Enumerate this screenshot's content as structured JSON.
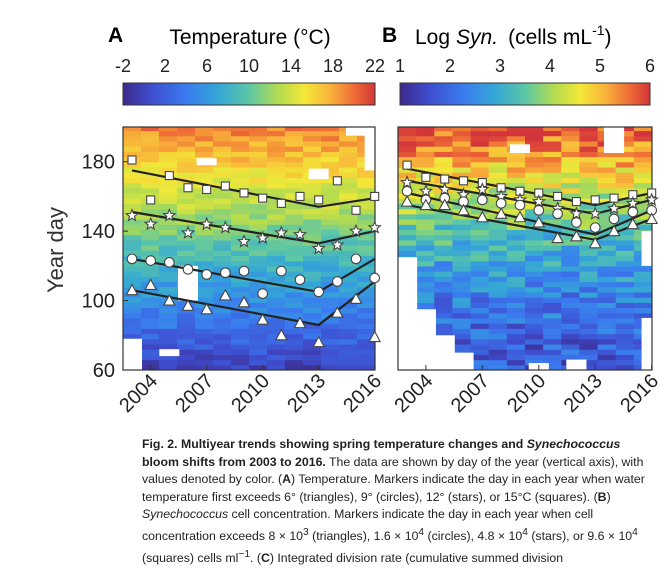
{
  "chart_data": [
    {
      "type": "heatmap",
      "panel": "A",
      "colorbar_title": "Temperature (°C)",
      "colorbar_ticks": [
        "-2",
        "2",
        "6",
        "10",
        "14",
        "18",
        "22"
      ],
      "colorbar_range": [
        -2,
        22
      ],
      "ylabel": "Year day",
      "ylim": [
        60,
        200
      ],
      "yticks": [
        "60",
        "100",
        "140",
        "180"
      ],
      "xlim": [
        2003,
        2016.5
      ],
      "xticks": [
        "2004",
        "2007",
        "2010",
        "2013",
        "2016"
      ],
      "series": [
        {
          "marker": "square",
          "points": [
            [
              2003,
              181
            ],
            [
              2004,
              158
            ],
            [
              2005,
              172
            ],
            [
              2006,
              165
            ],
            [
              2007,
              164
            ],
            [
              2008,
              166
            ],
            [
              2009,
              162
            ],
            [
              2010,
              159
            ],
            [
              2011,
              156
            ],
            [
              2012,
              160
            ],
            [
              2013,
              158
            ],
            [
              2014,
              169
            ],
            [
              2015,
              152
            ],
            [
              2016,
              160
            ]
          ],
          "trend": [
            [
              2003,
              175
            ],
            [
              2013,
              154
            ],
            [
              2016,
              159
            ]
          ]
        },
        {
          "marker": "star",
          "points": [
            [
              2003,
              149
            ],
            [
              2004,
              144
            ],
            [
              2005,
              149
            ],
            [
              2006,
              139
            ],
            [
              2007,
              144
            ],
            [
              2008,
              142
            ],
            [
              2009,
              134
            ],
            [
              2010,
              136
            ],
            [
              2011,
              139
            ],
            [
              2012,
              138
            ],
            [
              2013,
              130
            ],
            [
              2014,
              132
            ],
            [
              2015,
              140
            ],
            [
              2016,
              142
            ]
          ],
          "trend": [
            [
              2003,
              151
            ],
            [
              2013,
              133
            ],
            [
              2016,
              140
            ]
          ]
        },
        {
          "marker": "circle",
          "points": [
            [
              2003,
              124
            ],
            [
              2004,
              123
            ],
            [
              2005,
              122
            ],
            [
              2006,
              118
            ],
            [
              2007,
              115
            ],
            [
              2008,
              116
            ],
            [
              2009,
              117
            ],
            [
              2010,
              104
            ],
            [
              2011,
              117
            ],
            [
              2012,
              112
            ],
            [
              2013,
              105
            ],
            [
              2014,
              111
            ],
            [
              2015,
              124
            ],
            [
              2016,
              113
            ]
          ],
          "trend": [
            [
              2003,
              124
            ],
            [
              2013,
              105
            ],
            [
              2016,
              124
            ]
          ]
        },
        {
          "marker": "triangle",
          "points": [
            [
              2003,
              106
            ],
            [
              2004,
              109
            ],
            [
              2005,
              100
            ],
            [
              2006,
              97
            ],
            [
              2007,
              95
            ],
            [
              2008,
              103
            ],
            [
              2009,
              99
            ],
            [
              2010,
              89
            ],
            [
              2011,
              80
            ],
            [
              2012,
              87
            ],
            [
              2013,
              76
            ],
            [
              2014,
              93
            ],
            [
              2015,
              101
            ],
            [
              2016,
              79
            ]
          ],
          "trend": [
            [
              2003,
              106
            ],
            [
              2013,
              86
            ],
            [
              2016,
              111
            ]
          ]
        }
      ]
    },
    {
      "type": "heatmap",
      "panel": "B",
      "colorbar_title_main": "Log",
      "colorbar_title_italic": "Syn.",
      "colorbar_title_unit": "(cells mL",
      "colorbar_title_exp": "-1",
      "colorbar_title_close": ")",
      "colorbar_ticks": [
        "1",
        "2",
        "3",
        "4",
        "5",
        "6"
      ],
      "colorbar_range": [
        1,
        6
      ],
      "ylim": [
        60,
        200
      ],
      "xlim": [
        2003,
        2016.5
      ],
      "xticks": [
        "2004",
        "2007",
        "2010",
        "2013",
        "2016"
      ],
      "series": [
        {
          "marker": "square",
          "points": [
            [
              2003,
              178
            ],
            [
              2004,
              171
            ],
            [
              2005,
              170
            ],
            [
              2006,
              169
            ],
            [
              2007,
              168
            ],
            [
              2008,
              165
            ],
            [
              2009,
              163
            ],
            [
              2010,
              162
            ],
            [
              2011,
              160
            ],
            [
              2012,
              157
            ],
            [
              2013,
              158
            ],
            [
              2014,
              159
            ],
            [
              2015,
              161
            ],
            [
              2016,
              162
            ]
          ],
          "trend": [
            [
              2003,
              176
            ],
            [
              2013,
              155
            ],
            [
              2016,
              162
            ]
          ]
        },
        {
          "marker": "star",
          "points": [
            [
              2003,
              168
            ],
            [
              2004,
              163
            ],
            [
              2005,
              164
            ],
            [
              2006,
              161
            ],
            [
              2007,
              164
            ],
            [
              2008,
              160
            ],
            [
              2009,
              158
            ],
            [
              2010,
              157
            ],
            [
              2011,
              153
            ],
            [
              2012,
              150
            ],
            [
              2013,
              150
            ],
            [
              2014,
              153
            ],
            [
              2015,
              156
            ],
            [
              2016,
              158
            ]
          ],
          "trend": [
            [
              2003,
              169
            ],
            [
              2013,
              150
            ],
            [
              2016,
              158
            ]
          ]
        },
        {
          "marker": "circle",
          "points": [
            [
              2003,
              163
            ],
            [
              2004,
              158
            ],
            [
              2005,
              159
            ],
            [
              2006,
              157
            ],
            [
              2007,
              158
            ],
            [
              2008,
              156
            ],
            [
              2009,
              155
            ],
            [
              2010,
              152
            ],
            [
              2011,
              150
            ],
            [
              2012,
              145
            ],
            [
              2013,
              142
            ],
            [
              2014,
              147
            ],
            [
              2015,
              151
            ],
            [
              2016,
              152
            ]
          ],
          "trend": [
            [
              2003,
              162
            ],
            [
              2013,
              138
            ],
            [
              2016,
              152
            ]
          ]
        },
        {
          "marker": "triangle",
          "points": [
            [
              2003,
              157
            ],
            [
              2004,
              155
            ],
            [
              2005,
              155
            ],
            [
              2006,
              152
            ],
            [
              2007,
              148
            ],
            [
              2008,
              150
            ],
            [
              2009,
              148
            ],
            [
              2010,
              145
            ],
            [
              2011,
              136
            ],
            [
              2012,
              137
            ],
            [
              2013,
              133
            ],
            [
              2014,
              140
            ],
            [
              2015,
              144
            ],
            [
              2016,
              147
            ]
          ],
          "trend": [
            [
              2003,
              155
            ],
            [
              2013,
              135
            ],
            [
              2016,
              147
            ]
          ]
        }
      ]
    }
  ],
  "caption": {
    "title_part1": "Fig. 2. Multiyear trends showing spring temperature changes and ",
    "title_italic": "Synechococcus",
    "title_part2": " bloom shifts from 2003 to 2016.",
    "s1": " The data are shown by day of the year (vertical axis), with values denoted by color. (",
    "A": "A",
    "s2": ") Temperature. Markers indicate the day in each year when water temperature first exceeds 6° (triangles), 9° (circles), 12° (stars), or 15°C (squares). (",
    "B": "B",
    "s3": ") ",
    "syn": "Synechococcus",
    "s4": " cell concentration. Markers indicate the day in each year when cell concentration exceeds 8 × 10",
    "e1": "3",
    "s5": " (triangles), 1.6 × 10",
    "e2": "4",
    "s6": " (circles), 4.8 × 10",
    "e3": "4",
    "s7": " (stars), or 9.6 × 10",
    "e4": "4",
    "s8": " (squares) cells ml",
    "e5": "−1",
    "s9": ". (",
    "C": "C",
    "s10": ") Integrated division rate (cumulative summed division"
  }
}
